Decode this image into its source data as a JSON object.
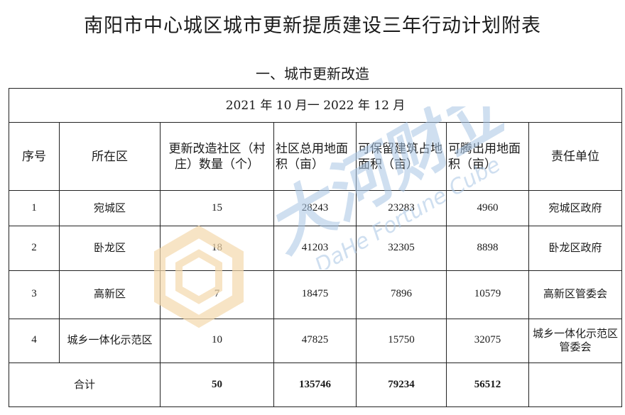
{
  "title": "南阳市中心城区城市更新提质建设三年行动计划附表",
  "section_title": "一、城市更新改造",
  "period": "2021 年  10 月一 2022 年 12 月",
  "headers": {
    "seq": "序号",
    "district": "所在区",
    "count": "更新改造社区（村庄）数量（个）",
    "total_area": "社区总用地面积（亩）",
    "keep_area": "可保留建筑占地面积（亩）",
    "free_area": "可腾出用地面积（亩）",
    "unit": "责任单位"
  },
  "rows": [
    {
      "seq": "1",
      "district": "宛城区",
      "count": "15",
      "total_area": "28243",
      "keep_area": "23283",
      "free_area": "4960",
      "unit": "宛城区政府"
    },
    {
      "seq": "2",
      "district": "卧龙区",
      "count": "18",
      "total_area": "41203",
      "keep_area": "32305",
      "free_area": "8898",
      "unit": "卧龙区政府"
    },
    {
      "seq": "3",
      "district": "高新区",
      "count": "7",
      "total_area": "18475",
      "keep_area": "7896",
      "free_area": "10579",
      "unit": "高新区管委会"
    },
    {
      "seq": "4",
      "district": "城乡一体化示范区",
      "count": "10",
      "total_area": "47825",
      "keep_area": "15750",
      "free_area": "32075",
      "unit": "城乡一体化示范区管委会"
    }
  ],
  "total": {
    "label": "合计",
    "count": "50",
    "total_area": "135746",
    "keep_area": "79234",
    "free_area": "56512"
  },
  "watermark": {
    "chinese": "大河财立方",
    "english": "DaHe Fortune Cube",
    "text_color": "#a9c6e4",
    "logo_color": "#f4d9ad"
  }
}
